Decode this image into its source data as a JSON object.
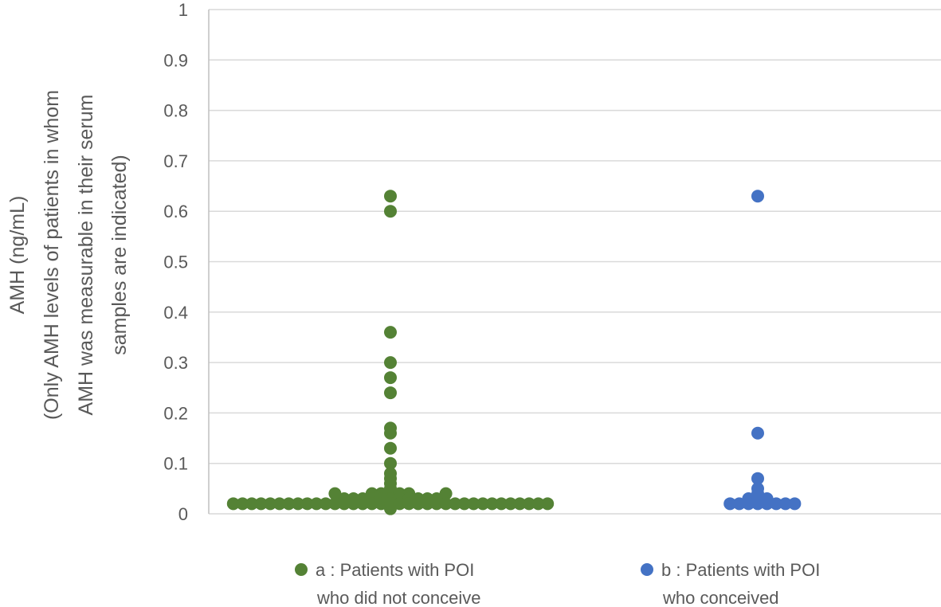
{
  "chart_data": {
    "type": "scatter",
    "title": "",
    "ylabel_lines": [
      "AMH (ng/mL)",
      "(Only AMH levels of patients in whom",
      "AMH was measurable in their serum",
      "samples are indicated)"
    ],
    "xlabel": "",
    "ylim": [
      0,
      1
    ],
    "yticks": [
      "0",
      "0.1",
      "0.2",
      "0.3",
      "0.4",
      "0.5",
      "0.6",
      "0.7",
      "0.8",
      "0.9",
      "1"
    ],
    "grid": true,
    "legend_position": "bottom",
    "series": [
      {
        "name": "a",
        "label_lines": [
          "a : Patients with POI",
          "who did not conceive"
        ],
        "color": "#548235",
        "points": [
          {
            "offset": 0,
            "y": 0.63
          },
          {
            "offset": 0,
            "y": 0.6
          },
          {
            "offset": 0,
            "y": 0.36
          },
          {
            "offset": 0,
            "y": 0.3
          },
          {
            "offset": 0,
            "y": 0.27
          },
          {
            "offset": 0,
            "y": 0.24
          },
          {
            "offset": 0,
            "y": 0.17
          },
          {
            "offset": 0,
            "y": 0.16
          },
          {
            "offset": 0,
            "y": 0.13
          },
          {
            "offset": 0,
            "y": 0.1
          },
          {
            "offset": 0,
            "y": 0.08
          },
          {
            "offset": 0,
            "y": 0.07
          },
          {
            "offset": 0,
            "y": 0.06
          },
          {
            "offset": 0,
            "y": 0.05
          },
          {
            "offset": 0,
            "y": 0.04
          },
          {
            "offset": 0,
            "y": 0.03
          },
          {
            "offset": 0,
            "y": 0.01
          },
          {
            "offset": -2,
            "y": 0.04
          },
          {
            "offset": -1,
            "y": 0.04
          },
          {
            "offset": 1,
            "y": 0.04
          },
          {
            "offset": 2,
            "y": 0.04
          },
          {
            "offset": -6,
            "y": 0.04
          },
          {
            "offset": 6,
            "y": 0.04
          },
          {
            "offset": -5,
            "y": 0.03
          },
          {
            "offset": -4,
            "y": 0.03
          },
          {
            "offset": -3,
            "y": 0.03
          },
          {
            "offset": -2,
            "y": 0.03
          },
          {
            "offset": -1,
            "y": 0.03
          },
          {
            "offset": 1,
            "y": 0.03
          },
          {
            "offset": 2,
            "y": 0.03
          },
          {
            "offset": 3,
            "y": 0.03
          },
          {
            "offset": 4,
            "y": 0.03
          },
          {
            "offset": 5,
            "y": 0.03
          },
          {
            "offset": -17,
            "y": 0.02
          },
          {
            "offset": -16,
            "y": 0.02
          },
          {
            "offset": -15,
            "y": 0.02
          },
          {
            "offset": -14,
            "y": 0.02
          },
          {
            "offset": -13,
            "y": 0.02
          },
          {
            "offset": -12,
            "y": 0.02
          },
          {
            "offset": -11,
            "y": 0.02
          },
          {
            "offset": -10,
            "y": 0.02
          },
          {
            "offset": -9,
            "y": 0.02
          },
          {
            "offset": -8,
            "y": 0.02
          },
          {
            "offset": -7,
            "y": 0.02
          },
          {
            "offset": -6,
            "y": 0.02
          },
          {
            "offset": -5,
            "y": 0.02
          },
          {
            "offset": -4,
            "y": 0.02
          },
          {
            "offset": -3,
            "y": 0.02
          },
          {
            "offset": -2,
            "y": 0.02
          },
          {
            "offset": -1,
            "y": 0.02
          },
          {
            "offset": 0,
            "y": 0.02
          },
          {
            "offset": 1,
            "y": 0.02
          },
          {
            "offset": 2,
            "y": 0.02
          },
          {
            "offset": 3,
            "y": 0.02
          },
          {
            "offset": 4,
            "y": 0.02
          },
          {
            "offset": 5,
            "y": 0.02
          },
          {
            "offset": 6,
            "y": 0.02
          },
          {
            "offset": 7,
            "y": 0.02
          },
          {
            "offset": 8,
            "y": 0.02
          },
          {
            "offset": 9,
            "y": 0.02
          },
          {
            "offset": 10,
            "y": 0.02
          },
          {
            "offset": 11,
            "y": 0.02
          },
          {
            "offset": 12,
            "y": 0.02
          },
          {
            "offset": 13,
            "y": 0.02
          },
          {
            "offset": 14,
            "y": 0.02
          },
          {
            "offset": 15,
            "y": 0.02
          },
          {
            "offset": 16,
            "y": 0.02
          },
          {
            "offset": 17,
            "y": 0.02
          }
        ]
      },
      {
        "name": "b",
        "label_lines": [
          "b : Patients with POI",
          "who conceived"
        ],
        "color": "#4472c4",
        "points": [
          {
            "offset": 0,
            "y": 0.63
          },
          {
            "offset": 0,
            "y": 0.16
          },
          {
            "offset": 0,
            "y": 0.07
          },
          {
            "offset": 0,
            "y": 0.05
          },
          {
            "offset": 0,
            "y": 0.04
          },
          {
            "offset": 0,
            "y": 0.03
          },
          {
            "offset": 0,
            "y": 0.02
          },
          {
            "offset": -1,
            "y": 0.03
          },
          {
            "offset": 1,
            "y": 0.03
          },
          {
            "offset": -1,
            "y": 0.02
          },
          {
            "offset": 1,
            "y": 0.02
          },
          {
            "offset": -3,
            "y": 0.02
          },
          {
            "offset": -2,
            "y": 0.02
          },
          {
            "offset": 2,
            "y": 0.02
          },
          {
            "offset": 3,
            "y": 0.02
          },
          {
            "offset": 4,
            "y": 0.02
          }
        ]
      }
    ]
  }
}
